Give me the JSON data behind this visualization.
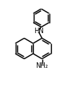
{
  "background_color": "#ffffff",
  "line_color": "#000000",
  "lw": 1.0,
  "font_size": 6.0,
  "figsize": [
    1.02,
    1.23
  ],
  "dpi": 100,
  "s": 0.13,
  "cxA": 0.3,
  "cyA": 0.5,
  "ph_s": 0.115
}
